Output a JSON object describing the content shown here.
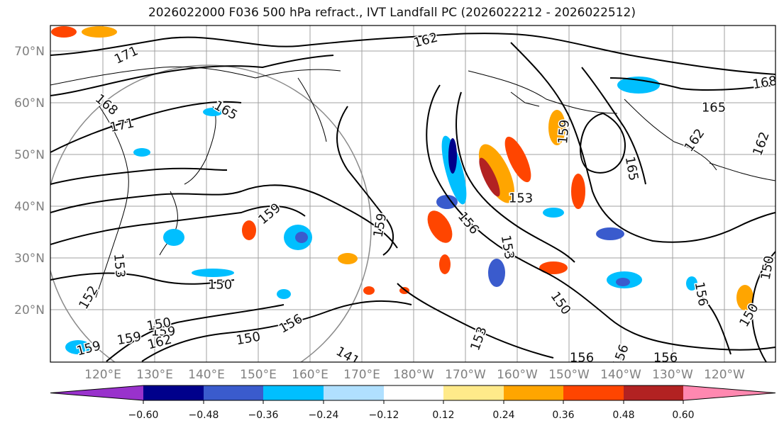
{
  "title": "2026022000 F036 500 hPa refract., IVT Landfall PC (2026022212 - 2026022512)",
  "map": {
    "lat_labels": [
      "70°N",
      "60°N",
      "50°N",
      "40°N",
      "30°N",
      "20°N"
    ],
    "lon_labels": [
      "120°E",
      "130°E",
      "140°E",
      "150°E",
      "160°E",
      "170°E",
      "180°W",
      "170°W",
      "160°W",
      "150°W",
      "140°W",
      "130°W",
      "120°W"
    ],
    "contour_labels": [
      "162",
      "171",
      "168",
      "171",
      "165",
      "168",
      "165",
      "162",
      "162",
      "159",
      "165",
      "153",
      "156",
      "153",
      "159",
      "159",
      "159",
      "153",
      "150",
      "152",
      "150",
      "159",
      "156",
      "162",
      "150",
      "159",
      "150",
      "153",
      "156",
      "156",
      "156",
      "156",
      "150",
      "150",
      "141"
    ]
  },
  "colorbar": {
    "colors": [
      "#9932cc",
      "#00008b",
      "#3a5bcd",
      "#00bfff",
      "#b0e0ff",
      "#ffffff",
      "#ffea8a",
      "#ffa500",
      "#ff4500",
      "#b22222",
      "#ff88b0"
    ],
    "tick_labels": [
      "−0.60",
      "−0.48",
      "−0.36",
      "−0.24",
      "−0.12",
      "0.12",
      "0.24",
      "0.36",
      "0.48",
      "0.60"
    ]
  }
}
